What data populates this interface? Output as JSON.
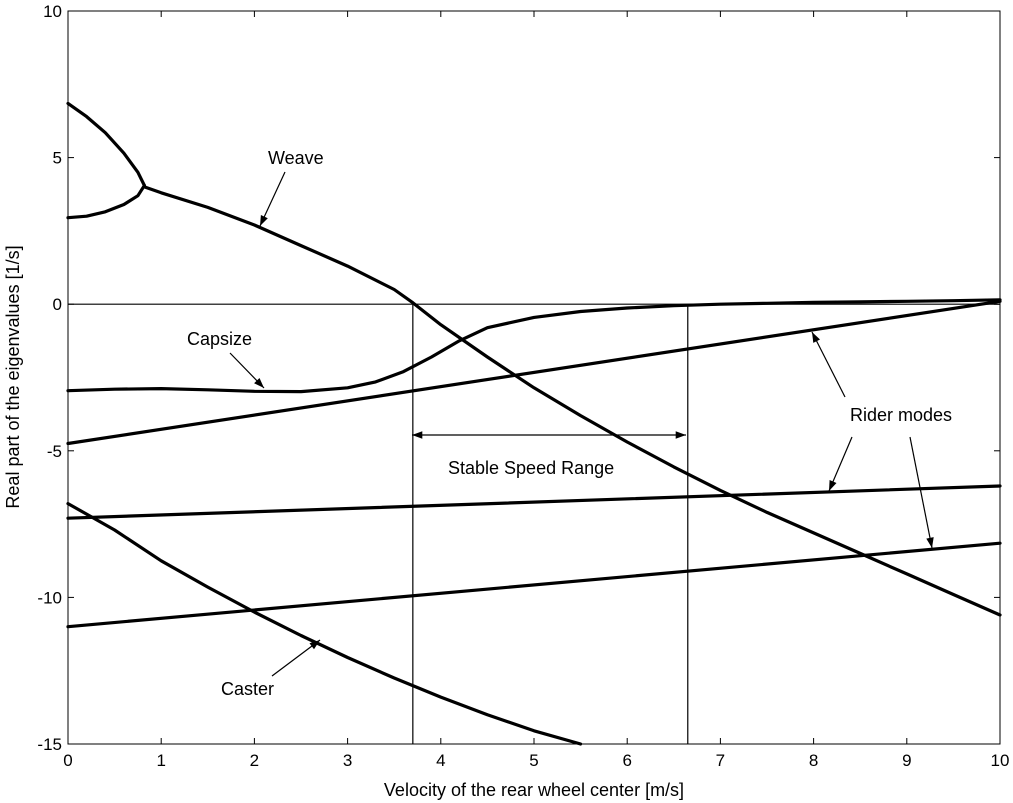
{
  "chart_data": {
    "type": "line",
    "xlabel": "Velocity of the rear wheel center [m/s]",
    "ylabel": "Real part of the eigenvalues [1/s]",
    "xlim": [
      0,
      10
    ],
    "ylim": [
      -15,
      10
    ],
    "xticks": [
      0,
      1,
      2,
      3,
      4,
      5,
      6,
      7,
      8,
      9,
      10
    ],
    "yticks": [
      10,
      5,
      0,
      -5,
      -10,
      -15
    ],
    "grid": false,
    "legend": "none",
    "series": [
      {
        "x": [
          0,
          0.2,
          0.4,
          0.6,
          0.75,
          0.82
        ],
        "y": [
          6.85,
          6.4,
          5.85,
          5.15,
          4.5,
          4.05
        ]
      },
      {
        "x": [
          0,
          0.2,
          0.4,
          0.6,
          0.75,
          0.82
        ],
        "y": [
          2.95,
          3.0,
          3.15,
          3.4,
          3.7,
          4.05
        ]
      },
      {
        "x": [
          0.82,
          1.0,
          1.5,
          2.0,
          2.5,
          3.0,
          3.5,
          3.7,
          4.0,
          4.5,
          5.0,
          5.5,
          6.0,
          6.5,
          7.0,
          7.5,
          8.0,
          8.5,
          9.0,
          9.5,
          10.0
        ],
        "y": [
          4.0,
          3.8,
          3.3,
          2.7,
          2.0,
          1.3,
          0.5,
          0.05,
          -0.7,
          -1.8,
          -2.85,
          -3.8,
          -4.7,
          -5.55,
          -6.35,
          -7.1,
          -7.8,
          -8.5,
          -9.2,
          -9.9,
          -10.6
        ]
      },
      {
        "x": [
          0,
          0.5,
          1.0,
          1.5,
          2.0,
          2.5,
          3.0,
          3.3,
          3.6,
          3.9,
          4.2,
          4.5,
          5.0,
          5.5,
          6.0,
          6.5,
          7.0,
          7.5,
          8.0,
          8.5,
          9.0,
          9.5,
          10.0
        ],
        "y": [
          -2.95,
          -2.9,
          -2.88,
          -2.92,
          -2.97,
          -2.98,
          -2.85,
          -2.65,
          -2.3,
          -1.8,
          -1.25,
          -0.8,
          -0.45,
          -0.25,
          -0.13,
          -0.05,
          0.0,
          0.03,
          0.06,
          0.08,
          0.1,
          0.12,
          0.15
        ]
      },
      {
        "x": [
          0,
          10
        ],
        "y": [
          -4.75,
          0.1
        ]
      },
      {
        "x": [
          0,
          10
        ],
        "y": [
          -7.3,
          -6.2
        ]
      },
      {
        "x": [
          0,
          10
        ],
        "y": [
          -11.0,
          -8.15
        ]
      },
      {
        "x": [
          0,
          0.5,
          1.0,
          1.5,
          2.0,
          2.5,
          3.0,
          3.5,
          4.0,
          4.5,
          5.0,
          5.5
        ],
        "y": [
          -6.8,
          -7.7,
          -8.75,
          -9.65,
          -10.5,
          -11.3,
          -12.05,
          -12.75,
          -13.4,
          -14.0,
          -14.55,
          -15.0
        ]
      }
    ],
    "annotations": [
      {
        "text": "Weave"
      },
      {
        "text": "Capsize"
      },
      {
        "text": "Stable Speed Range"
      },
      {
        "text": "Rider modes"
      },
      {
        "text": "Caster"
      }
    ]
  }
}
